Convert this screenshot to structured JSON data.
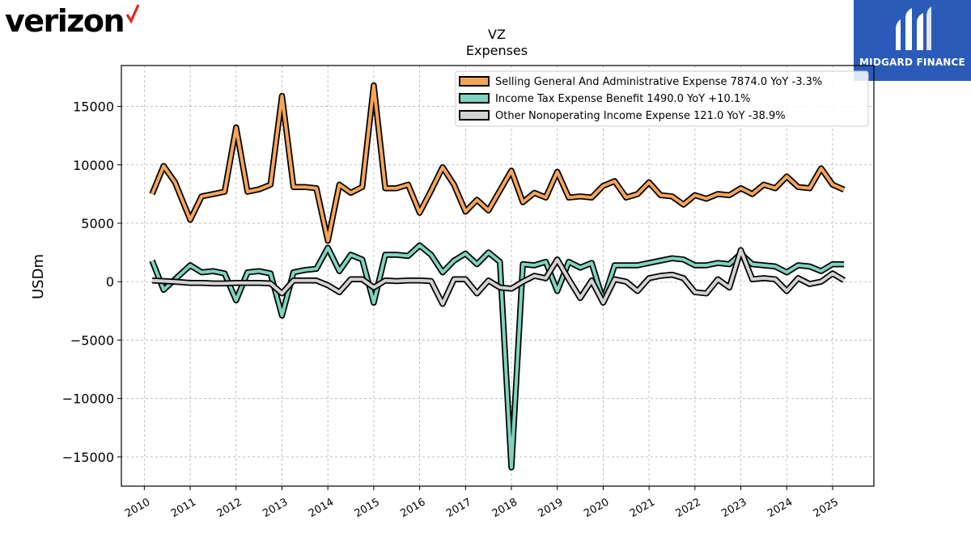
{
  "brand": {
    "company_logo_text": "verizon",
    "sponsor_logo_text": "MIDGARD FINANCE"
  },
  "chart_data": {
    "type": "line",
    "title": "VZ",
    "subtitle": "Expenses",
    "ylabel": "USDm",
    "xlabel": "",
    "ylim": [
      -17500,
      18500
    ],
    "xlim": [
      2009.5,
      2025.9
    ],
    "grid": true,
    "legend_position": "top-right",
    "y_ticks": [
      15000,
      10000,
      5000,
      0,
      -5000,
      -10000,
      -15000
    ],
    "y_tick_labels": [
      "15000",
      "10000",
      "5000",
      "0",
      "−5000",
      "−10000",
      "−15000"
    ],
    "x_ticks": [
      2010,
      2011,
      2012,
      2013,
      2014,
      2015,
      2016,
      2017,
      2018,
      2019,
      2020,
      2021,
      2022,
      2023,
      2024,
      2025
    ],
    "x_tick_labels": [
      "2010",
      "2011",
      "2012",
      "2013",
      "2014",
      "2015",
      "2016",
      "2017",
      "2018",
      "2019",
      "2020",
      "2021",
      "2022",
      "2023",
      "2024",
      "2025"
    ],
    "x": [
      2010.17,
      2010.42,
      2010.67,
      2011.0,
      2011.25,
      2011.5,
      2011.75,
      2012.0,
      2012.25,
      2012.5,
      2012.75,
      2013.0,
      2013.25,
      2013.5,
      2013.75,
      2014.0,
      2014.25,
      2014.5,
      2014.75,
      2015.0,
      2015.25,
      2015.5,
      2015.75,
      2016.0,
      2016.25,
      2016.5,
      2016.75,
      2017.0,
      2017.25,
      2017.5,
      2017.75,
      2018.0,
      2018.25,
      2018.5,
      2018.75,
      2019.0,
      2019.25,
      2019.5,
      2019.75,
      2020.0,
      2020.25,
      2020.5,
      2020.75,
      2021.0,
      2021.25,
      2021.5,
      2021.75,
      2022.0,
      2022.25,
      2022.5,
      2022.75,
      2023.0,
      2023.25,
      2023.5,
      2023.75,
      2024.0,
      2024.25,
      2024.5,
      2024.75,
      2025.0,
      2025.25
    ],
    "series": [
      {
        "name": "Selling General And Administrative Expense  7874.0 YoY -3.3%",
        "color": "#f5a55a",
        "values": [
          7500,
          9900,
          8500,
          5300,
          7300,
          7500,
          7700,
          13200,
          7700,
          7900,
          8300,
          15900,
          8100,
          8100,
          8000,
          3500,
          8300,
          7600,
          8100,
          16800,
          8000,
          8000,
          8300,
          5900,
          7800,
          9800,
          8300,
          6000,
          7000,
          6100,
          7800,
          9500,
          6800,
          7600,
          7200,
          9400,
          7200,
          7300,
          7200,
          8200,
          8600,
          7200,
          7500,
          8500,
          7400,
          7300,
          6600,
          7400,
          7100,
          7500,
          7400,
          8000,
          7500,
          8300,
          8000,
          9000,
          8100,
          8000,
          9700,
          8300,
          7874
        ]
      },
      {
        "name": "Income Tax Expense Benefit  1490.0 YoY +10.1%",
        "color": "#7fd3bf",
        "values": [
          1800,
          -700,
          200,
          1400,
          800,
          900,
          700,
          -1600,
          800,
          900,
          700,
          -2900,
          800,
          1000,
          1100,
          2900,
          900,
          2300,
          1900,
          -1800,
          2300,
          2300,
          2200,
          3100,
          2300,
          800,
          1800,
          2400,
          1500,
          2500,
          1700,
          -15900,
          1500,
          1400,
          1700,
          -800,
          1700,
          1200,
          1600,
          -1600,
          1400,
          1400,
          1400,
          1600,
          1800,
          2000,
          1900,
          1400,
          1400,
          1600,
          1500,
          2400,
          1500,
          1400,
          1300,
          800,
          1400,
          1300,
          900,
          1500,
          1490
        ]
      },
      {
        "name": "Other Nonoperating Income Expense  121.0 YoY -38.9%",
        "color": "#d3d3d3",
        "values": [
          100,
          50,
          0,
          -100,
          -100,
          -150,
          -150,
          -100,
          -100,
          -100,
          -150,
          -1000,
          100,
          100,
          100,
          -300,
          -900,
          200,
          200,
          -500,
          100,
          50,
          100,
          100,
          50,
          -1900,
          200,
          200,
          -1000,
          100,
          -500,
          -600,
          0,
          500,
          300,
          1900,
          200,
          -1400,
          100,
          -1800,
          200,
          0,
          -800,
          300,
          500,
          600,
          300,
          -900,
          -1000,
          200,
          -500,
          2700,
          200,
          300,
          200,
          -800,
          300,
          -200,
          0,
          700,
          121
        ]
      }
    ]
  }
}
